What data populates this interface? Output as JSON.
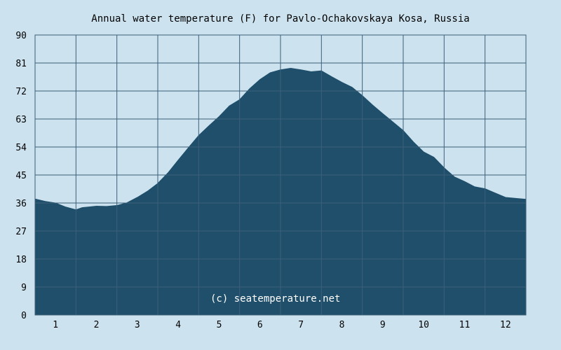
{
  "chart_data": {
    "type": "area",
    "title": "Annual water temperature (F) for Pavlo-Ochakovskaya Kosa, Russia",
    "xlabel": "",
    "ylabel": "",
    "ylim": [
      0,
      90
    ],
    "xlim": [
      0.5,
      12.5
    ],
    "yticks": [
      "0",
      "9",
      "18",
      "27",
      "36",
      "45",
      "54",
      "63",
      "72",
      "81",
      "90"
    ],
    "xticks": [
      "1",
      "2",
      "3",
      "4",
      "5",
      "6",
      "7",
      "8",
      "9",
      "10",
      "11",
      "12"
    ],
    "grid": true,
    "watermark": "(c) seatemperature.net",
    "colors": {
      "background": "#cce3ef",
      "fill": "#1f4f6b",
      "grid": "#3d5f7a",
      "text": "#000000"
    },
    "series": [
      {
        "x": [
          0.5,
          0.75,
          1.0,
          1.25,
          1.5,
          1.65,
          2.0,
          2.25,
          2.5,
          2.75,
          3.0,
          3.25,
          3.5,
          3.75,
          4.0,
          4.25,
          4.5,
          4.75,
          5.0,
          5.25,
          5.5,
          5.75,
          6.0,
          6.25,
          6.5,
          6.75,
          7.0,
          7.25,
          7.5,
          7.75,
          8.0,
          8.25,
          8.5,
          8.75,
          9.0,
          9.25,
          9.5,
          9.75,
          10.0,
          10.25,
          10.5,
          10.75,
          11.0,
          11.25,
          11.5,
          11.75,
          12.0,
          12.25,
          12.5
        ],
        "values": [
          37.3,
          36.5,
          36.0,
          34.7,
          33.8,
          34.5,
          35.0,
          34.9,
          35.2,
          36.1,
          37.8,
          39.8,
          42.3,
          45.7,
          49.8,
          53.8,
          57.7,
          60.8,
          63.8,
          67.2,
          69.2,
          72.8,
          75.7,
          77.9,
          78.8,
          79.3,
          78.8,
          78.2,
          78.5,
          76.6,
          74.8,
          73.2,
          70.5,
          67.5,
          64.7,
          62.0,
          59.3,
          55.6,
          52.4,
          50.7,
          47.3,
          44.4,
          42.9,
          41.2,
          40.6,
          39.2,
          37.8,
          37.5,
          37.2
        ]
      }
    ]
  }
}
